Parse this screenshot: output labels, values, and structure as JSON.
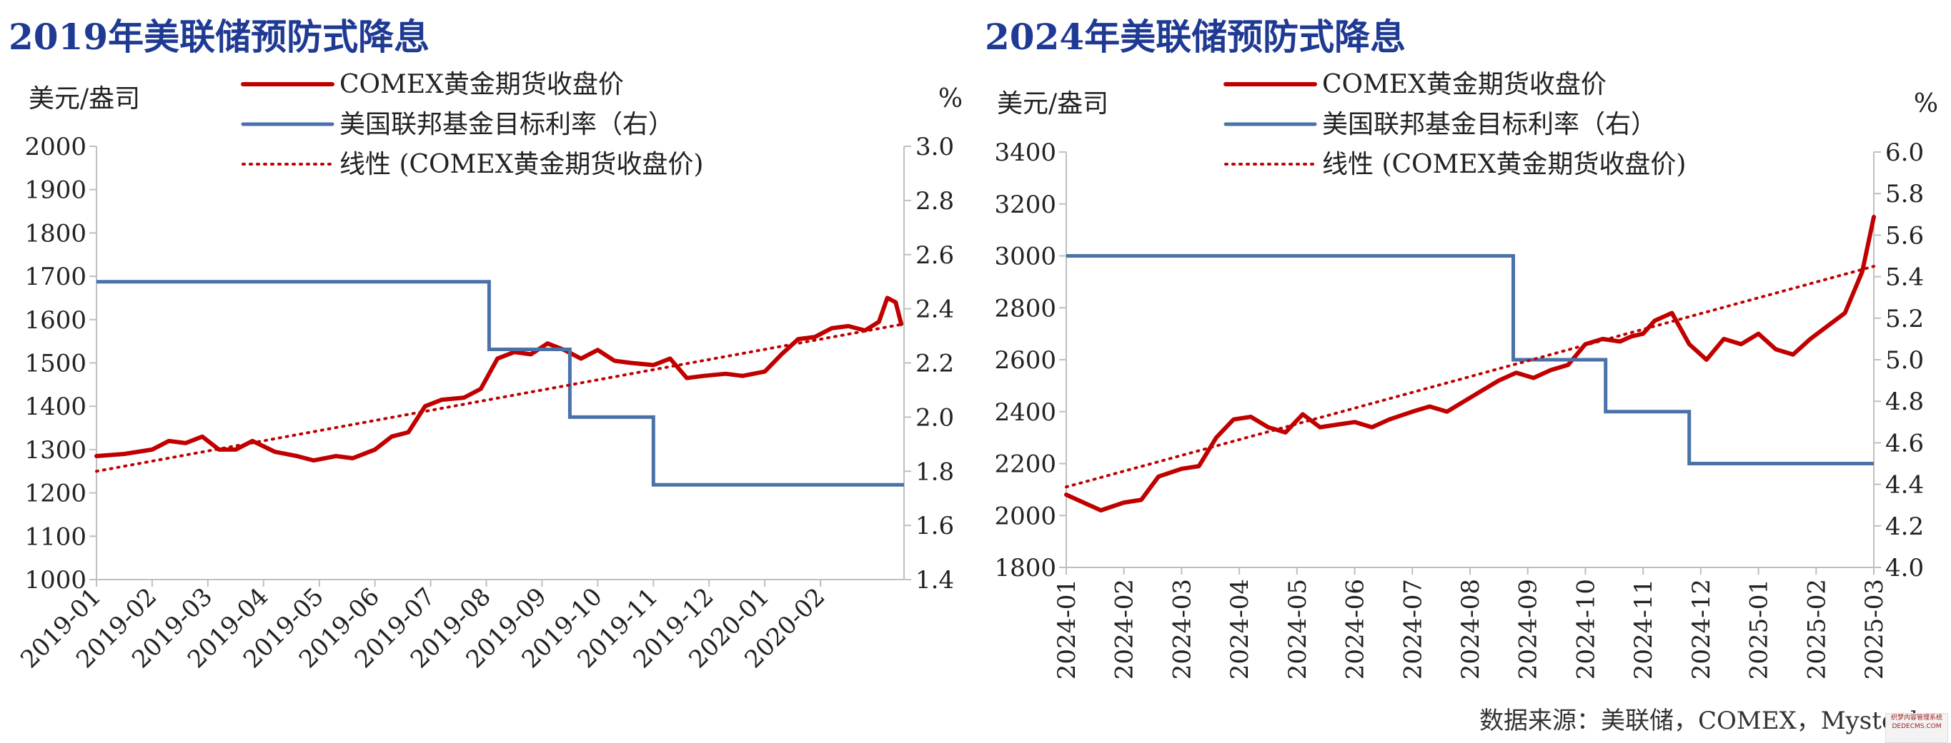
{
  "titles": {
    "left": "2019年美联储预防式降息",
    "right": "2024年美联储预防式降息"
  },
  "source": "数据来源：美联储，COMEX，Mysteel",
  "watermark": {
    "line1": "织梦内容管理系统",
    "line2": "DEDECMS.COM"
  },
  "colors": {
    "gold": "#c00000",
    "rate": "#4a72a8",
    "trend": "#c00000",
    "axis": "#bfbfbf",
    "title": "#1f3a93"
  },
  "chart_data": [
    {
      "type": "line",
      "title": "2019年美联储预防式降息",
      "ylabel_left": "美元/盎司",
      "ylabel_right": "%",
      "ylim_left": [
        1000,
        2000
      ],
      "yticks_left": [
        1000,
        1100,
        1200,
        1300,
        1400,
        1500,
        1600,
        1700,
        1800,
        1900,
        2000
      ],
      "ylim_right": [
        1.4,
        3.0
      ],
      "yticks_right": [
        1.4,
        1.6,
        1.8,
        2.0,
        2.2,
        2.4,
        2.6,
        2.8,
        3.0
      ],
      "xlim": [
        0,
        14.5
      ],
      "x_tick_labels": [
        "2019-01",
        "2019-02",
        "2019-03",
        "2019-04",
        "2019-05",
        "2019-06",
        "2019-07",
        "2019-08",
        "2019-09",
        "2019-10",
        "2019-11",
        "2019-12",
        "2020-01",
        "2020-02"
      ],
      "legend": [
        "COMEX黄金期货收盘价",
        "美国联邦基金目标利率（右）",
        "线性 (COMEX黄金期货收盘价)"
      ],
      "series": [
        {
          "name": "COMEX黄金期货收盘价",
          "axis": "left",
          "style": "solid",
          "x": [
            0,
            0.5,
            1,
            1.3,
            1.6,
            1.9,
            2.2,
            2.5,
            2.8,
            3.2,
            3.6,
            3.9,
            4.3,
            4.6,
            5,
            5.3,
            5.6,
            5.9,
            6.2,
            6.6,
            6.9,
            7.2,
            7.5,
            7.8,
            8.1,
            8.4,
            8.7,
            9,
            9.3,
            9.6,
            10,
            10.3,
            10.6,
            10.9,
            11.3,
            11.6,
            12,
            12.3,
            12.6,
            12.9,
            13.2,
            13.5,
            13.8,
            14.05,
            14.2,
            14.35,
            14.45
          ],
          "values": [
            1285,
            1290,
            1300,
            1320,
            1315,
            1330,
            1300,
            1300,
            1320,
            1295,
            1285,
            1275,
            1285,
            1280,
            1300,
            1330,
            1340,
            1400,
            1415,
            1420,
            1440,
            1510,
            1525,
            1520,
            1545,
            1530,
            1510,
            1530,
            1505,
            1500,
            1495,
            1510,
            1465,
            1470,
            1475,
            1470,
            1480,
            1520,
            1555,
            1560,
            1580,
            1585,
            1575,
            1595,
            1650,
            1640,
            1590
          ]
        },
        {
          "name": "美国联邦基金目标利率（右）",
          "axis": "right",
          "style": "step",
          "x": [
            0,
            7.05,
            7.05,
            8.5,
            8.5,
            10.0,
            10.0,
            14.5
          ],
          "values": [
            2.5,
            2.5,
            2.25,
            2.25,
            2.0,
            2.0,
            1.75,
            1.75
          ]
        },
        {
          "name": "线性 (COMEX黄金期货收盘价)",
          "axis": "left",
          "style": "dotted",
          "x": [
            0,
            14.5
          ],
          "values": [
            1250,
            1590
          ]
        }
      ]
    },
    {
      "type": "line",
      "title": "2024年美联储预防式降息",
      "ylabel_left": "美元/盎司",
      "ylabel_right": "%",
      "ylim_left": [
        1800,
        3400
      ],
      "yticks_left": [
        1800,
        2000,
        2200,
        2400,
        2600,
        2800,
        3000,
        3200,
        3400
      ],
      "ylim_right": [
        4.0,
        6.0
      ],
      "yticks_right": [
        4.0,
        4.2,
        4.4,
        4.6,
        4.8,
        5.0,
        5.2,
        5.4,
        5.6,
        5.8,
        6.0
      ],
      "xlim": [
        0,
        14
      ],
      "x_tick_labels": [
        "2024-01",
        "2024-02",
        "2024-03",
        "2024-04",
        "2024-05",
        "2024-06",
        "2024-07",
        "2024-08",
        "2024-09",
        "2024-10",
        "2024-11",
        "2024-12",
        "2025-01",
        "2025-02",
        "2025-03"
      ],
      "legend": [
        "COMEX黄金期货收盘价",
        "美国联邦基金目标利率（右）",
        "线性 (COMEX黄金期货收盘价)"
      ],
      "series": [
        {
          "name": "COMEX黄金期货收盘价",
          "axis": "left",
          "style": "solid",
          "x": [
            0,
            0.3,
            0.6,
            1,
            1.3,
            1.6,
            2,
            2.3,
            2.6,
            2.9,
            3.2,
            3.5,
            3.8,
            4.1,
            4.4,
            4.7,
            5,
            5.3,
            5.6,
            6,
            6.3,
            6.6,
            6.9,
            7.2,
            7.5,
            7.8,
            8.1,
            8.4,
            8.7,
            9,
            9.3,
            9.6,
            9.8,
            10,
            10.2,
            10.5,
            10.8,
            11.1,
            11.4,
            11.7,
            12,
            12.3,
            12.6,
            12.9,
            13.2,
            13.5,
            13.8,
            14
          ],
          "values": [
            2080,
            2050,
            2020,
            2050,
            2060,
            2150,
            2180,
            2190,
            2300,
            2370,
            2380,
            2340,
            2320,
            2390,
            2340,
            2350,
            2360,
            2340,
            2370,
            2400,
            2420,
            2400,
            2440,
            2480,
            2520,
            2550,
            2530,
            2560,
            2580,
            2660,
            2680,
            2670,
            2690,
            2700,
            2750,
            2780,
            2660,
            2600,
            2680,
            2660,
            2700,
            2640,
            2620,
            2680,
            2730,
            2780,
            2940,
            3150
          ]
        },
        {
          "name": "美国联邦基金目标利率（右）",
          "axis": "right",
          "style": "step",
          "x": [
            0,
            7.75,
            7.75,
            9.35,
            9.35,
            10.8,
            10.8,
            14
          ],
          "values": [
            5.5,
            5.5,
            5.0,
            5.0,
            4.75,
            4.75,
            4.5,
            4.5
          ]
        },
        {
          "name": "线性 (COMEX黄金期货收盘价)",
          "axis": "left",
          "style": "dotted",
          "x": [
            0,
            14
          ],
          "values": [
            2110,
            2960
          ]
        }
      ]
    }
  ]
}
